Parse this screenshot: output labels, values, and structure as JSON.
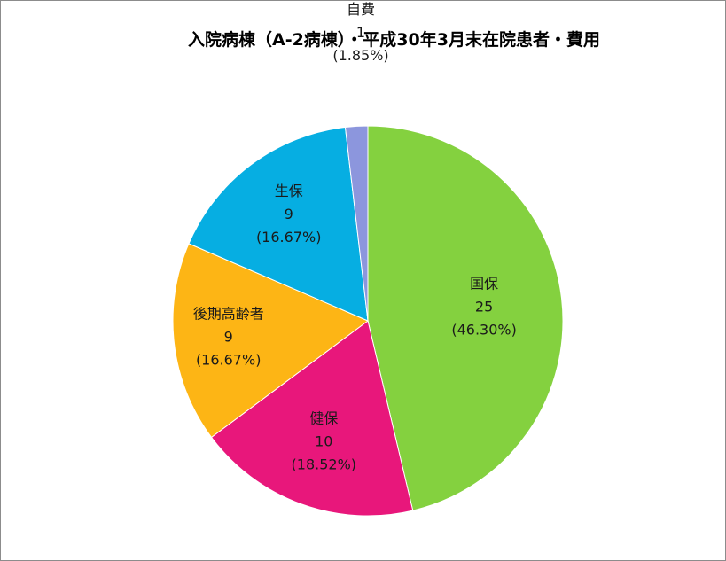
{
  "chart_data": {
    "type": "pie",
    "title": "入院病棟（A-2病棟）・平成30年3月末在院患者・費用",
    "slices": [
      {
        "label": "国保",
        "value": 25,
        "percent": "46.30%",
        "color": "#84d13f"
      },
      {
        "label": "健保",
        "value": 10,
        "percent": "18.52%",
        "color": "#e8177b"
      },
      {
        "label": "後期高齢者",
        "value": 9,
        "percent": "16.67%",
        "color": "#fdb515"
      },
      {
        "label": "生保",
        "value": 9,
        "percent": "16.67%",
        "color": "#06aee2"
      },
      {
        "label": "自費",
        "value": 1,
        "percent": "1.85%",
        "color": "#8c96dd"
      }
    ],
    "start": "12 o'clock",
    "direction": "clockwise",
    "legend": "none"
  }
}
